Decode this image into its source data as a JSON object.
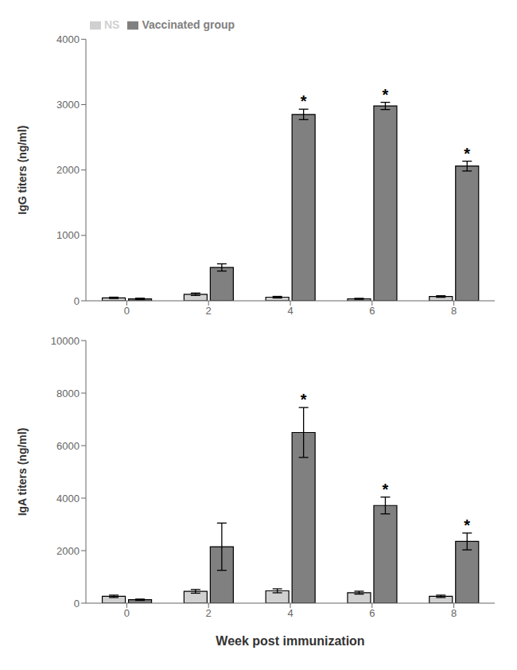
{
  "chart_data": [
    {
      "type": "bar",
      "categories": [
        "0",
        "2",
        "4",
        "6",
        "8"
      ],
      "series": [
        {
          "name": "NS",
          "color": "#d0d0d0",
          "values": [
            45,
            100,
            55,
            30,
            65
          ],
          "errors": [
            10,
            18,
            12,
            8,
            12
          ]
        },
        {
          "name": "Vaccinated group",
          "color": "#808080",
          "values": [
            30,
            510,
            2850,
            2980,
            2060
          ],
          "errors": [
            10,
            55,
            80,
            55,
            75
          ]
        }
      ],
      "ylabel": "IgG titers (ng/ml)",
      "ylim": [
        0,
        4000
      ],
      "yticks": [
        0,
        1000,
        2000,
        3000,
        4000
      ],
      "legend": "upper left",
      "annotations": [
        {
          "text": "*",
          "x": "4",
          "series": "Vaccinated group"
        },
        {
          "text": "*",
          "x": "6",
          "series": "Vaccinated group"
        },
        {
          "text": "*",
          "x": "8",
          "series": "Vaccinated group"
        }
      ]
    },
    {
      "type": "bar",
      "categories": [
        "0",
        "2",
        "4",
        "6",
        "8"
      ],
      "series": [
        {
          "name": "NS",
          "color": "#d0d0d0",
          "values": [
            260,
            450,
            470,
            400,
            260
          ],
          "errors": [
            45,
            70,
            75,
            55,
            45
          ]
        },
        {
          "name": "Vaccinated group",
          "color": "#808080",
          "values": [
            130,
            2150,
            6500,
            3720,
            2350
          ],
          "errors": [
            25,
            900,
            950,
            320,
            320
          ]
        }
      ],
      "ylabel": "IgA titers (ng/ml)",
      "xlabel": "Week post immunization",
      "ylim": [
        0,
        10000
      ],
      "yticks": [
        0,
        2000,
        4000,
        6000,
        8000,
        10000
      ],
      "annotations": [
        {
          "text": "*",
          "x": "4",
          "series": "Vaccinated group"
        },
        {
          "text": "*",
          "x": "6",
          "series": "Vaccinated group"
        },
        {
          "text": "*",
          "x": "8",
          "series": "Vaccinated group"
        }
      ]
    }
  ]
}
